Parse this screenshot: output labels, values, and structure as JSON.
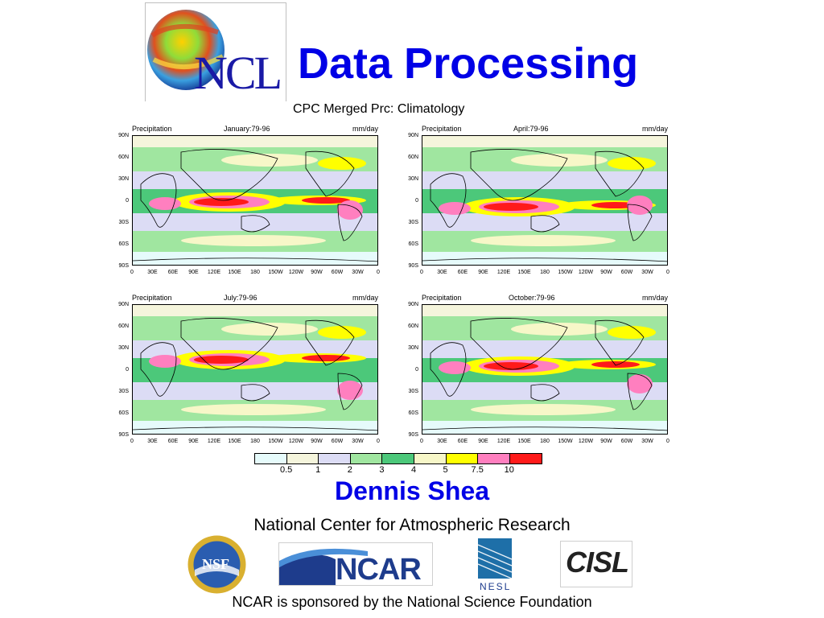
{
  "slide": {
    "title": "Data Processing",
    "author": "Dennis Shea",
    "institution": "National Center for Atmospheric Research",
    "sponsor_note": "NCAR is sponsored by the National Science Foundation"
  },
  "logos": {
    "ncl": "NCL",
    "nsf": "NSF",
    "ncar": "NCAR",
    "nesl": "NESL",
    "cisl": "CISL"
  },
  "figure": {
    "title": "CPC Merged Prc: Climatology",
    "panels": [
      {
        "variable": "Precipitation",
        "period": "January:79-96",
        "units": "mm/day"
      },
      {
        "variable": "Precipitation",
        "period": "April:79-96",
        "units": "mm/day"
      },
      {
        "variable": "Precipitation",
        "period": "July:79-96",
        "units": "mm/day"
      },
      {
        "variable": "Precipitation",
        "period": "October:79-96",
        "units": "mm/day"
      }
    ],
    "lat_ticks": [
      "90N",
      "60N",
      "30N",
      "0",
      "30S",
      "60S",
      "90S"
    ],
    "lon_ticks": [
      "0",
      "30E",
      "60E",
      "90E",
      "120E",
      "150E",
      "180",
      "150W",
      "120W",
      "90W",
      "60W",
      "30W",
      "0"
    ],
    "colorbar": {
      "labels": [
        "0.5",
        "1",
        "2",
        "3",
        "4",
        "5",
        "7.5",
        "10"
      ],
      "colors": [
        "#e6fbfb",
        "#f5f5dc",
        "#dcdcf5",
        "#a0e6a0",
        "#4cc87a",
        "#f7f7c8",
        "#ffff00",
        "#ff7fbf",
        "#ff1a1a"
      ]
    }
  }
}
